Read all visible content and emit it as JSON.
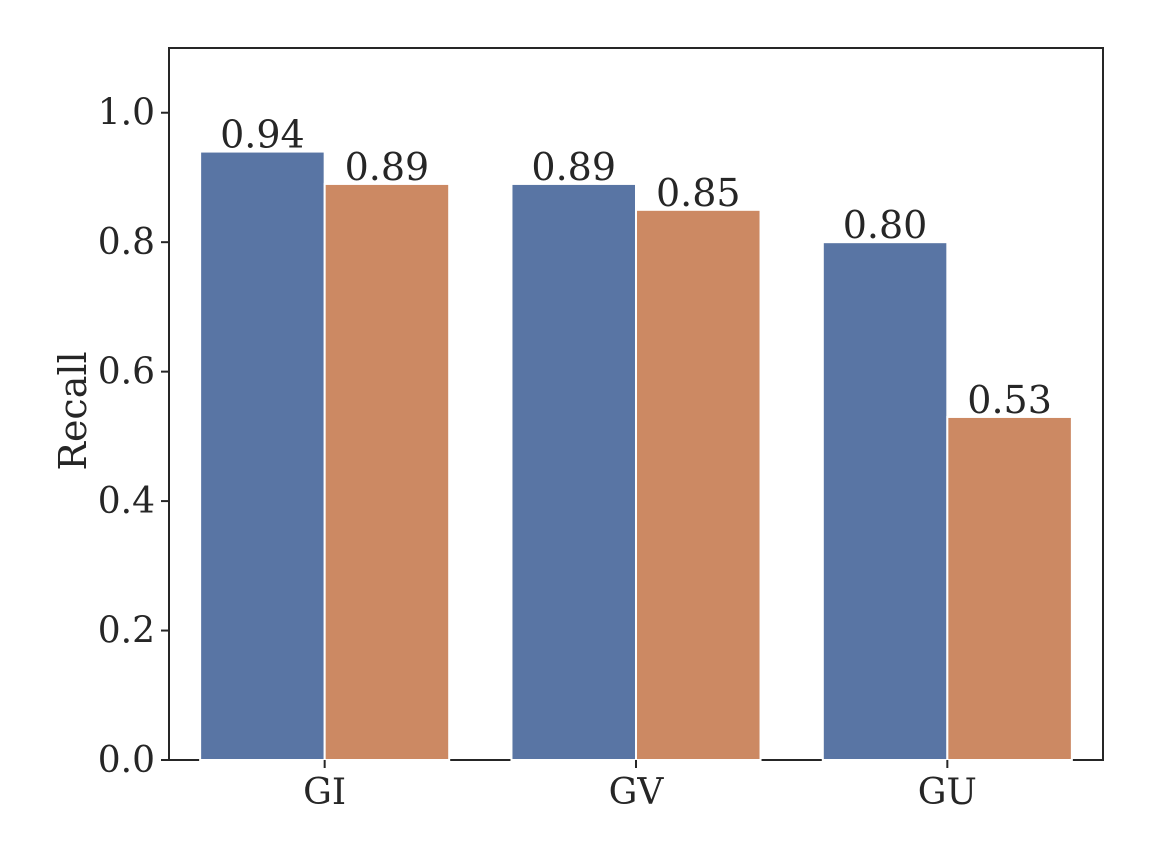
{
  "chart_data": {
    "type": "bar",
    "title": "",
    "xlabel": "",
    "ylabel": "Recall",
    "categories": [
      "GI",
      "GV",
      "GU"
    ],
    "series": [
      {
        "values": [
          0.94,
          0.89,
          0.8
        ],
        "labels": [
          "0.94",
          "0.89",
          "0.80"
        ],
        "color": "#5975a4"
      },
      {
        "values": [
          0.89,
          0.85,
          0.53
        ],
        "labels": [
          "0.89",
          "0.85",
          "0.53"
        ],
        "color": "#cc8963"
      }
    ],
    "ylim": [
      0,
      1.1
    ],
    "yticks": [
      0.0,
      0.2,
      0.4,
      0.6,
      0.8,
      1.0
    ],
    "ytick_labels": [
      "0.0",
      "0.2",
      "0.4",
      "0.6",
      "0.8",
      "1.0"
    ],
    "grid": false,
    "legend": "none"
  }
}
